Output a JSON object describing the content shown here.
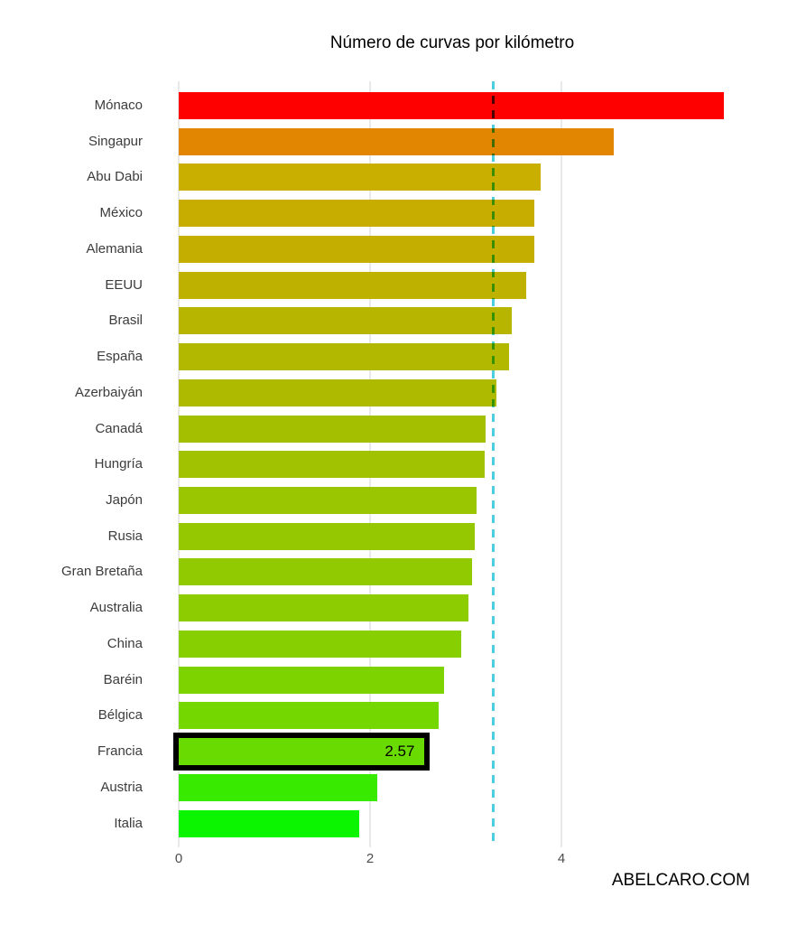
{
  "page": {
    "watermark": "ABELCARO.COM",
    "background": "#ffffff"
  },
  "chart_data": {
    "type": "bar",
    "orientation": "horizontal",
    "title": "Número de curvas por kilómetro",
    "categories": [
      "Mónaco",
      "Singapur",
      "Abu Dabi",
      "México",
      "Alemania",
      "EEUU",
      "Brasil",
      "España",
      "Azerbaiyán",
      "Canadá",
      "Hungría",
      "Japón",
      "Rusia",
      "Gran Bretaña",
      "Australia",
      "China",
      "Baréin",
      "Bélgica",
      "Francia",
      "Austria",
      "Italia"
    ],
    "values": [
      5.7,
      4.55,
      3.78,
      3.72,
      3.72,
      3.63,
      3.48,
      3.45,
      3.32,
      3.21,
      3.2,
      3.11,
      3.09,
      3.07,
      3.03,
      2.95,
      2.77,
      2.72,
      2.57,
      2.08,
      1.89
    ],
    "bar_colors": [
      "#FF0000",
      "#E28500",
      "#C9AF00",
      "#C7AD00",
      "#C4AE00",
      "#BFB100",
      "#B7B500",
      "#B2B800",
      "#ADBA00",
      "#A4BF00",
      "#A0C200",
      "#99C600",
      "#95C800",
      "#91CA00",
      "#8DCC00",
      "#87CF00",
      "#7CD300",
      "#74D700",
      "#69DB00",
      "#38E900",
      "#0BF400"
    ],
    "highlight": {
      "category": "Francia",
      "label": "2.57",
      "border_color": "#000000"
    },
    "reference_line": {
      "value": 3.29,
      "style": "dashed",
      "color": "#4ECDE0"
    },
    "x_ticks": [
      "0",
      "2",
      "4"
    ],
    "x_tick_values": [
      0,
      2,
      4
    ],
    "xlim": [
      0,
      6.55
    ],
    "grid": true,
    "grid_color": "#E9E9E9",
    "axis_label_color": "#4D4D4D",
    "category_label_color": "#3C3C3C",
    "xlabel": "",
    "ylabel": ""
  }
}
